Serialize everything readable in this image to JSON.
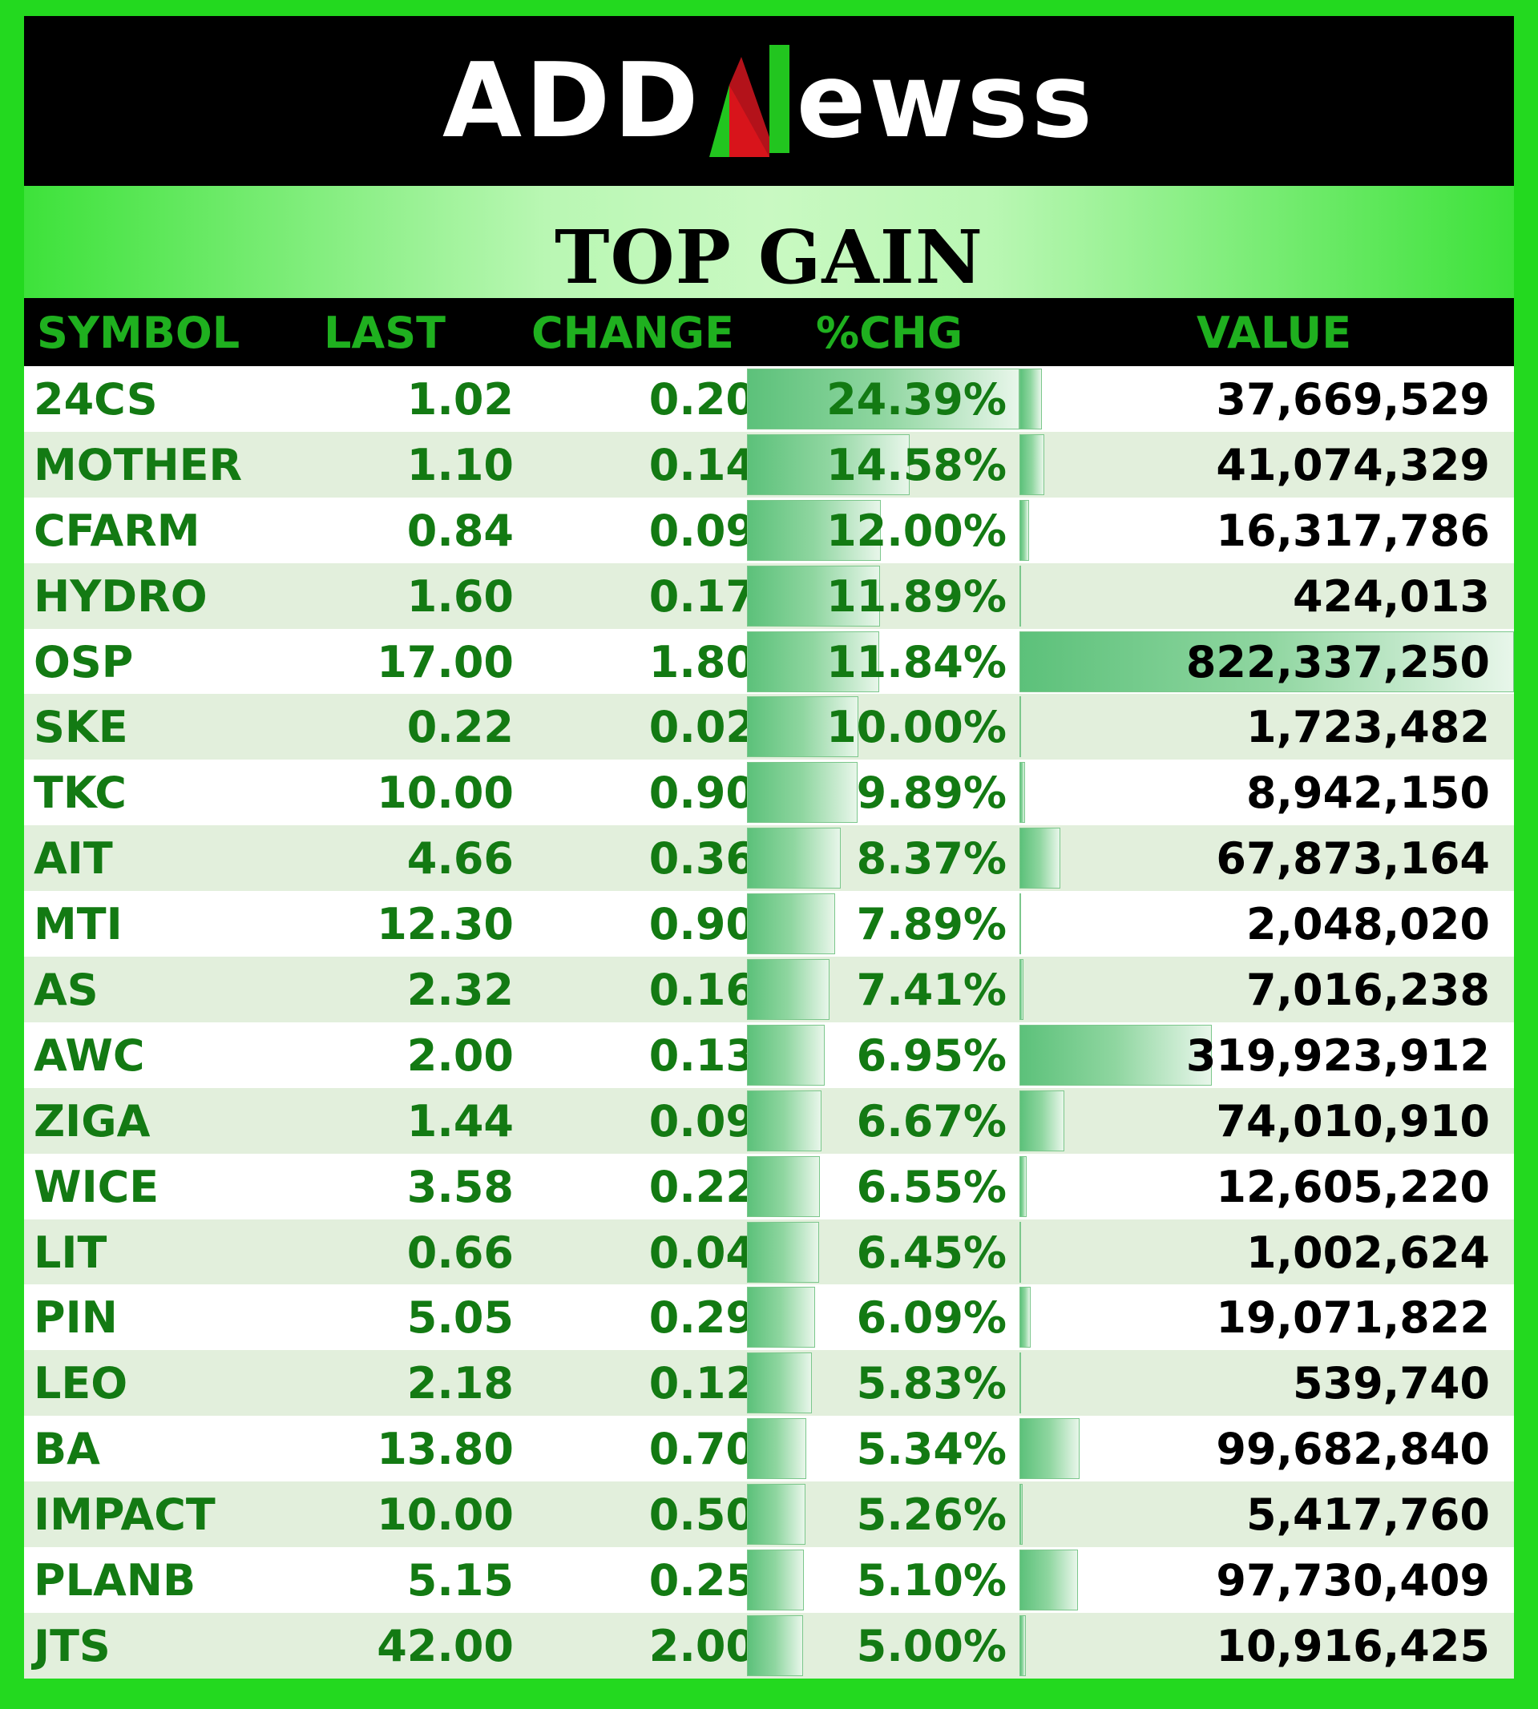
{
  "brand": {
    "left": "ADD",
    "right": "ewss",
    "slash_colors": [
      "#22c51f",
      "#d8141b"
    ]
  },
  "title": "TOP GAIN",
  "columns": {
    "symbol": "SYMBOL",
    "last": "LAST",
    "change": "CHANGE",
    "pct": "%CHG",
    "value": "VALUE"
  },
  "rows": [
    {
      "symbol": "24CS",
      "last": "1.02",
      "change": "0.20",
      "pct": "24.39%",
      "value": "37,669,529",
      "pct_num": 24.39,
      "value_num": 37669529
    },
    {
      "symbol": "MOTHER",
      "last": "1.10",
      "change": "0.14",
      "pct": "14.58%",
      "value": "41,074,329",
      "pct_num": 14.58,
      "value_num": 41074329
    },
    {
      "symbol": "CFARM",
      "last": "0.84",
      "change": "0.09",
      "pct": "12.00%",
      "value": "16,317,786",
      "pct_num": 12.0,
      "value_num": 16317786
    },
    {
      "symbol": "HYDRO",
      "last": "1.60",
      "change": "0.17",
      "pct": "11.89%",
      "value": "424,013",
      "pct_num": 11.89,
      "value_num": 424013
    },
    {
      "symbol": "OSP",
      "last": "17.00",
      "change": "1.80",
      "pct": "11.84%",
      "value": "822,337,250",
      "pct_num": 11.84,
      "value_num": 822337250
    },
    {
      "symbol": "SKE",
      "last": "0.22",
      "change": "0.02",
      "pct": "10.00%",
      "value": "1,723,482",
      "pct_num": 10.0,
      "value_num": 1723482
    },
    {
      "symbol": "TKC",
      "last": "10.00",
      "change": "0.90",
      "pct": "9.89%",
      "value": "8,942,150",
      "pct_num": 9.89,
      "value_num": 8942150
    },
    {
      "symbol": "AIT",
      "last": "4.66",
      "change": "0.36",
      "pct": "8.37%",
      "value": "67,873,164",
      "pct_num": 8.37,
      "value_num": 67873164
    },
    {
      "symbol": "MTI",
      "last": "12.30",
      "change": "0.90",
      "pct": "7.89%",
      "value": "2,048,020",
      "pct_num": 7.89,
      "value_num": 2048020
    },
    {
      "symbol": "AS",
      "last": "2.32",
      "change": "0.16",
      "pct": "7.41%",
      "value": "7,016,238",
      "pct_num": 7.41,
      "value_num": 7016238
    },
    {
      "symbol": "AWC",
      "last": "2.00",
      "change": "0.13",
      "pct": "6.95%",
      "value": "319,923,912",
      "pct_num": 6.95,
      "value_num": 319923912
    },
    {
      "symbol": "ZIGA",
      "last": "1.44",
      "change": "0.09",
      "pct": "6.67%",
      "value": "74,010,910",
      "pct_num": 6.67,
      "value_num": 74010910
    },
    {
      "symbol": "WICE",
      "last": "3.58",
      "change": "0.22",
      "pct": "6.55%",
      "value": "12,605,220",
      "pct_num": 6.55,
      "value_num": 12605220
    },
    {
      "symbol": "LIT",
      "last": "0.66",
      "change": "0.04",
      "pct": "6.45%",
      "value": "1,002,624",
      "pct_num": 6.45,
      "value_num": 1002624
    },
    {
      "symbol": "PIN",
      "last": "5.05",
      "change": "0.29",
      "pct": "6.09%",
      "value": "19,071,822",
      "pct_num": 6.09,
      "value_num": 19071822
    },
    {
      "symbol": "LEO",
      "last": "2.18",
      "change": "0.12",
      "pct": "5.83%",
      "value": "539,740",
      "pct_num": 5.83,
      "value_num": 539740
    },
    {
      "symbol": "BA",
      "last": "13.80",
      "change": "0.70",
      "pct": "5.34%",
      "value": "99,682,840",
      "pct_num": 5.34,
      "value_num": 99682840
    },
    {
      "symbol": "IMPACT",
      "last": "10.00",
      "change": "0.50",
      "pct": "5.26%",
      "value": "5,417,760",
      "pct_num": 5.26,
      "value_num": 5417760
    },
    {
      "symbol": "PLANB",
      "last": "5.15",
      "change": "0.25",
      "pct": "5.10%",
      "value": "97,730,409",
      "pct_num": 5.1,
      "value_num": 97730409
    },
    {
      "symbol": "JTS",
      "last": "42.00",
      "change": "2.00",
      "pct": "5.00%",
      "value": "10,916,425",
      "pct_num": 5.0,
      "value_num": 10916425
    }
  ]
}
